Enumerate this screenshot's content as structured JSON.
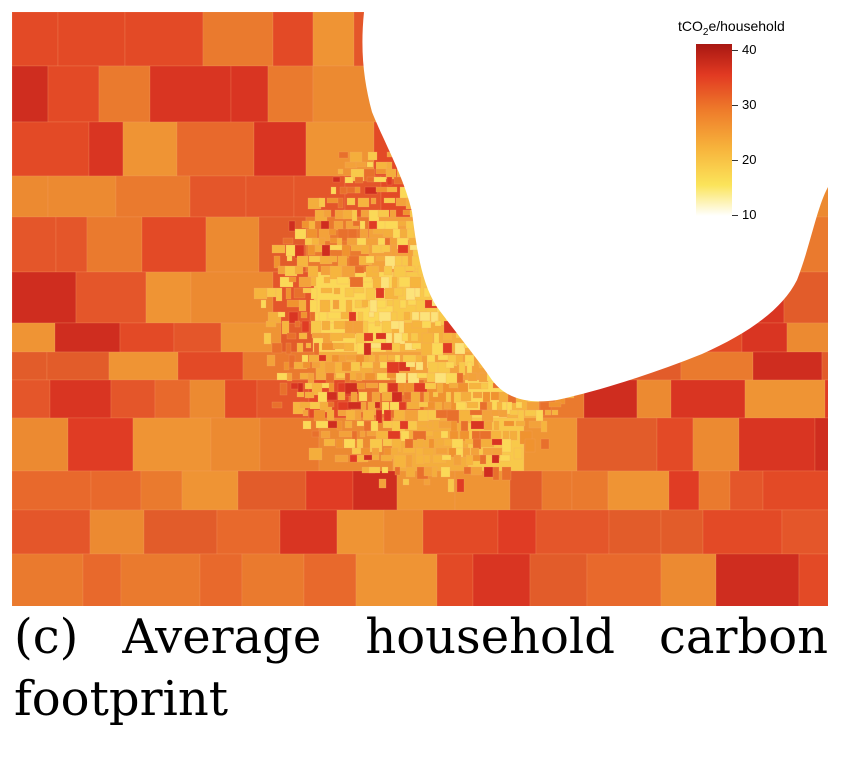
{
  "map": {
    "legend": {
      "title_prefix": "tCO",
      "title_sub": "2",
      "title_suffix": "e/household",
      "ticks": [
        "40",
        "30",
        "20",
        "10"
      ],
      "tick_values": [
        40,
        30,
        20,
        10
      ],
      "range": [
        10,
        42
      ],
      "colors": [
        "#ffffff",
        "#fbe45a",
        "#f7b23b",
        "#ee7a2a",
        "#e23a22",
        "#a81712"
      ]
    },
    "land_color": "#e8682c",
    "water_color": "#ffffff"
  },
  "caption": {
    "text": "(c) Average household carbon footprint"
  }
}
